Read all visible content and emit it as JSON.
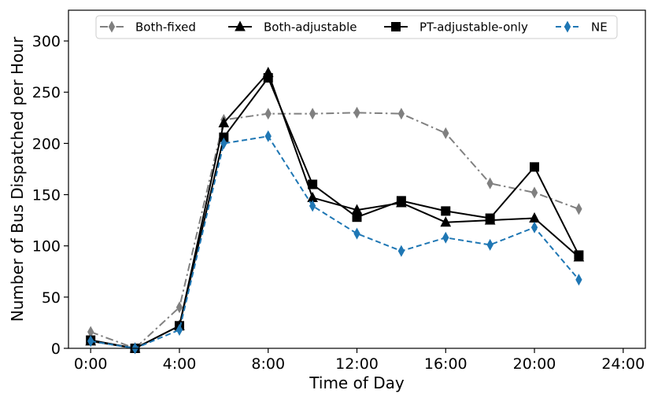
{
  "chart_data": {
    "type": "line",
    "xlabel": "Time of Day",
    "ylabel": "Number of Bus Dispatched per Hour",
    "xlim": [
      -1,
      25
    ],
    "ylim": [
      0,
      330
    ],
    "x_ticks": [
      {
        "value": 0,
        "label": "0:00"
      },
      {
        "value": 4,
        "label": "4:00"
      },
      {
        "value": 8,
        "label": "8:00"
      },
      {
        "value": 12,
        "label": "12:00"
      },
      {
        "value": 16,
        "label": "16:00"
      },
      {
        "value": 20,
        "label": "20:00"
      },
      {
        "value": 24,
        "label": "24:00"
      }
    ],
    "y_ticks": [
      {
        "value": 0,
        "label": "0"
      },
      {
        "value": 50,
        "label": "50"
      },
      {
        "value": 100,
        "label": "100"
      },
      {
        "value": 150,
        "label": "150"
      },
      {
        "value": 200,
        "label": "200"
      },
      {
        "value": 250,
        "label": "250"
      },
      {
        "value": 300,
        "label": "300"
      }
    ],
    "legend_position": "top",
    "grid": false,
    "x": [
      0,
      2,
      4,
      6,
      8,
      10,
      12,
      14,
      16,
      18,
      20,
      22
    ],
    "series": [
      {
        "name": "Both-fixed",
        "color": "#808080",
        "line_style": "dash-dot",
        "marker": "thin-diamond",
        "values": [
          16,
          0,
          40,
          223,
          229,
          229,
          230,
          229,
          210,
          161,
          152,
          136
        ]
      },
      {
        "name": "Both-adjustable",
        "color": "#000000",
        "line_style": "solid",
        "marker": "triangle",
        "values": [
          7,
          0,
          22,
          220,
          269,
          147,
          135,
          142,
          123,
          125,
          127,
          89
        ]
      },
      {
        "name": "PT-adjustable-only",
        "color": "#000000",
        "line_style": "solid",
        "marker": "square",
        "values": [
          8,
          0,
          22,
          206,
          264,
          160,
          128,
          144,
          134,
          127,
          177,
          91
        ]
      },
      {
        "name": "NE",
        "color": "#1f77b4",
        "line_style": "dashed",
        "marker": "thin-diamond",
        "values": [
          7,
          0,
          18,
          200,
          207,
          139,
          112,
          95,
          108,
          101,
          118,
          67
        ]
      }
    ]
  }
}
